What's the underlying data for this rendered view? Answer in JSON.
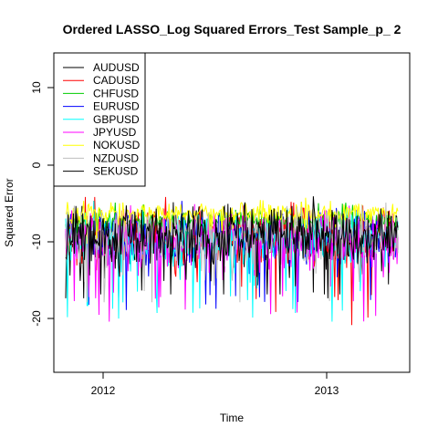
{
  "chart_data": {
    "type": "line",
    "title": "Ordered LASSO_Log Squared Errors_Test Sample_p_ 2",
    "xlabel": "Time",
    "ylabel": "Squared Error",
    "x_ticks": [
      "2012",
      "2013"
    ],
    "y_ticks": [
      "-20",
      "-10",
      "0",
      "10"
    ],
    "x_range": [
      "2011-10",
      "2013-05"
    ],
    "ylim": [
      -27,
      14
    ],
    "grid": false,
    "legend_position": "top-left",
    "n_points": 390,
    "series": [
      {
        "name": "AUDUSD",
        "color": "#000000",
        "mean": -9.5,
        "spread": 2.3,
        "min": -17.5,
        "max": -4.0
      },
      {
        "name": "CADUSD",
        "color": "#ff0000",
        "mean": -9.8,
        "spread": 2.6,
        "min": -23.0,
        "max": -4.5
      },
      {
        "name": "CHFUSD",
        "color": "#00cd00",
        "mean": -7.6,
        "spread": 1.0,
        "min": -11.5,
        "max": -4.5
      },
      {
        "name": "EURUSD",
        "color": "#0000ff",
        "mean": -9.7,
        "spread": 2.2,
        "min": -19.0,
        "max": -5.0
      },
      {
        "name": "GBPUSD",
        "color": "#00ffff",
        "mean": -10.1,
        "spread": 2.4,
        "min": -20.5,
        "max": -5.0
      },
      {
        "name": "JPYUSD",
        "color": "#ff00ff",
        "mean": -10.0,
        "spread": 2.5,
        "min": -21.0,
        "max": -4.5
      },
      {
        "name": "NOKUSD",
        "color": "#ffff00",
        "mean": -6.6,
        "spread": 0.9,
        "min": -10.5,
        "max": -2.5
      },
      {
        "name": "NZDUSD",
        "color": "#bebebe",
        "mean": -9.6,
        "spread": 2.3,
        "min": -18.0,
        "max": -4.5
      },
      {
        "name": "SEKUSD",
        "color": "#000000",
        "mean": -9.4,
        "spread": 2.2,
        "min": -17.0,
        "max": -3.0
      }
    ]
  }
}
